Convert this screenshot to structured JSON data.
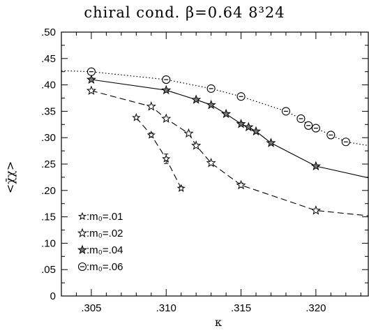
{
  "chart_data": {
    "type": "line",
    "title": "chiral cond.   β=0.64   8³24",
    "xlabel": "κ",
    "ylabel": "<χ̄χ>",
    "xlim": [
      0.303,
      0.3235
    ],
    "ylim": [
      0,
      0.5
    ],
    "x_ticks": [
      0.305,
      0.31,
      0.315,
      0.32
    ],
    "x_tick_labels": [
      ".305",
      ".310",
      ".315",
      ".320"
    ],
    "y_ticks": [
      0,
      0.05,
      0.1,
      0.15,
      0.2,
      0.25,
      0.3,
      0.35,
      0.4,
      0.45,
      0.5
    ],
    "y_tick_labels": [
      "0",
      ".05",
      ".10",
      ".15",
      ".20",
      ".25",
      ".30",
      ".35",
      ".40",
      ".45",
      ".50"
    ],
    "grid": false,
    "legend_position": "bottom-left",
    "series": [
      {
        "name": ":m₀=.01",
        "marker": "star-small",
        "line": "dash",
        "x": [
          0.308,
          0.309,
          0.31,
          0.311
        ],
        "y": [
          0.338,
          0.305,
          0.26,
          0.204
        ],
        "err": [
          0.002,
          0.004,
          0.009,
          0.003
        ],
        "curve_x": [
          0.308,
          0.309,
          0.31,
          0.311
        ],
        "curve_y": [
          0.338,
          0.305,
          0.26,
          0.204
        ]
      },
      {
        "name": ":m₀=.02",
        "marker": "star",
        "line": "dash",
        "x": [
          0.305,
          0.309,
          0.31,
          0.3115,
          0.312,
          0.313,
          0.315,
          0.32
        ],
        "y": [
          0.389,
          0.359,
          0.336,
          0.308,
          0.285,
          0.252,
          0.21,
          0.162
        ],
        "err": [
          0.002,
          0.002,
          0.002,
          0.002,
          0.002,
          0.002,
          0.004,
          0.002
        ],
        "curve_x": [
          0.305,
          0.309,
          0.31,
          0.3115,
          0.312,
          0.313,
          0.315,
          0.32,
          0.3235
        ],
        "curve_y": [
          0.389,
          0.359,
          0.336,
          0.308,
          0.285,
          0.252,
          0.21,
          0.162,
          0.152
        ]
      },
      {
        "name": ":m₀=.04",
        "marker": "star-dense",
        "line": "solid",
        "x": [
          0.305,
          0.31,
          0.312,
          0.313,
          0.314,
          0.315,
          0.3155,
          0.316,
          0.317,
          0.32
        ],
        "y": [
          0.41,
          0.39,
          0.372,
          0.362,
          0.345,
          0.326,
          0.32,
          0.312,
          0.29,
          0.246
        ],
        "err": [
          0.003,
          0.002,
          0.002,
          0.002,
          0.002,
          0.003,
          0.002,
          0.002,
          0.002,
          0.002
        ],
        "curve_x": [
          0.305,
          0.31,
          0.312,
          0.313,
          0.314,
          0.315,
          0.3155,
          0.316,
          0.317,
          0.32,
          0.3235
        ],
        "curve_y": [
          0.41,
          0.39,
          0.372,
          0.362,
          0.345,
          0.326,
          0.32,
          0.312,
          0.29,
          0.246,
          0.224
        ]
      },
      {
        "name": ":m₀=.06",
        "marker": "circle",
        "line": "dotted",
        "x": [
          0.305,
          0.31,
          0.313,
          0.315,
          0.318,
          0.319,
          0.3195,
          0.32,
          0.321,
          0.322
        ],
        "y": [
          0.425,
          0.41,
          0.393,
          0.378,
          0.35,
          0.336,
          0.323,
          0.318,
          0.305,
          0.292
        ],
        "err": [
          0,
          0,
          0,
          0,
          0,
          0,
          0,
          0,
          0,
          0
        ],
        "curve_x": [
          0.303,
          0.305,
          0.31,
          0.313,
          0.315,
          0.318,
          0.319,
          0.3195,
          0.32,
          0.321,
          0.322,
          0.3235
        ],
        "curve_y": [
          0.427,
          0.425,
          0.41,
          0.393,
          0.378,
          0.35,
          0.336,
          0.323,
          0.318,
          0.305,
          0.292,
          0.285
        ]
      }
    ]
  }
}
